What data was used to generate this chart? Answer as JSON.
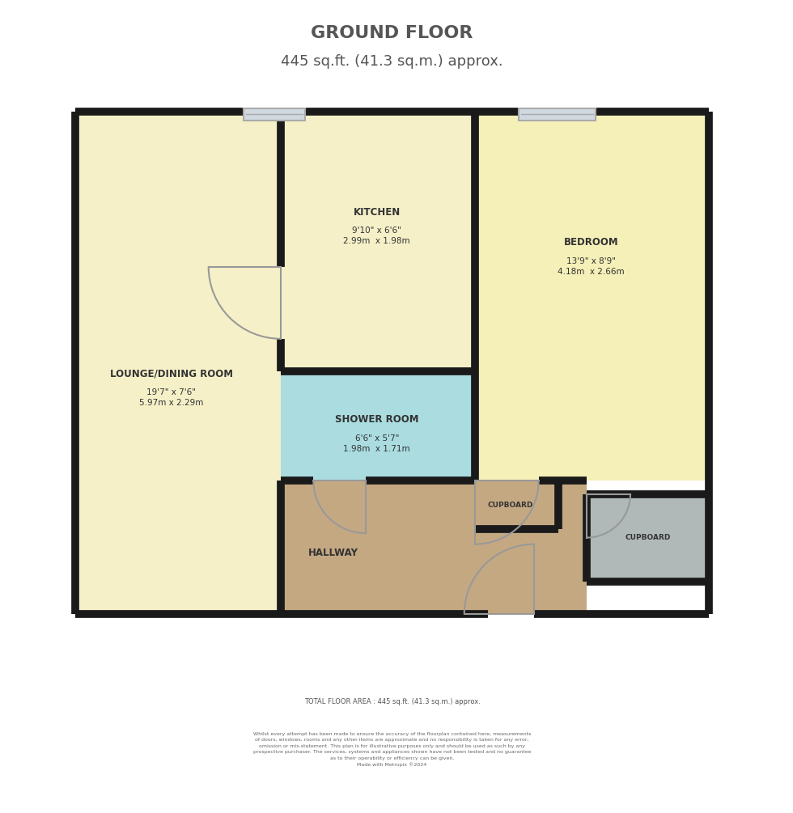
{
  "title_line1": "GROUND FLOOR",
  "title_line2": "445 sq.ft. (41.3 sq.m.) approx.",
  "title_color": "#555555",
  "bg_color": "#ffffff",
  "wall_color": "#1a1a1a",
  "colors": {
    "lounge": "#f5f0c8",
    "kitchen": "#f5f0c8",
    "bedroom": "#f5efb8",
    "shower": "#aadce0",
    "hallway": "#c4a882",
    "cupboard2": "#b0b8b8",
    "window": "#d0d8e0"
  },
  "footer_text1": "TOTAL FLOOR AREA : 445 sq.ft. (41.3 sq.m.) approx.",
  "footer_text2": "Whilst every attempt has been made to ensure the accuracy of the floorplan contained here, measurements\nof doors, windows, rooms and any other items are approximate and no responsibility is taken for any error,\nomission or mis-statement. This plan is for illustrative purposes only and should be used as such by any\nprospective purchaser. The services, systems and appliances shown have not been tested and no guarantee\nas to their operability or efficiency can be given.\nMade with Metropix ©2024"
}
